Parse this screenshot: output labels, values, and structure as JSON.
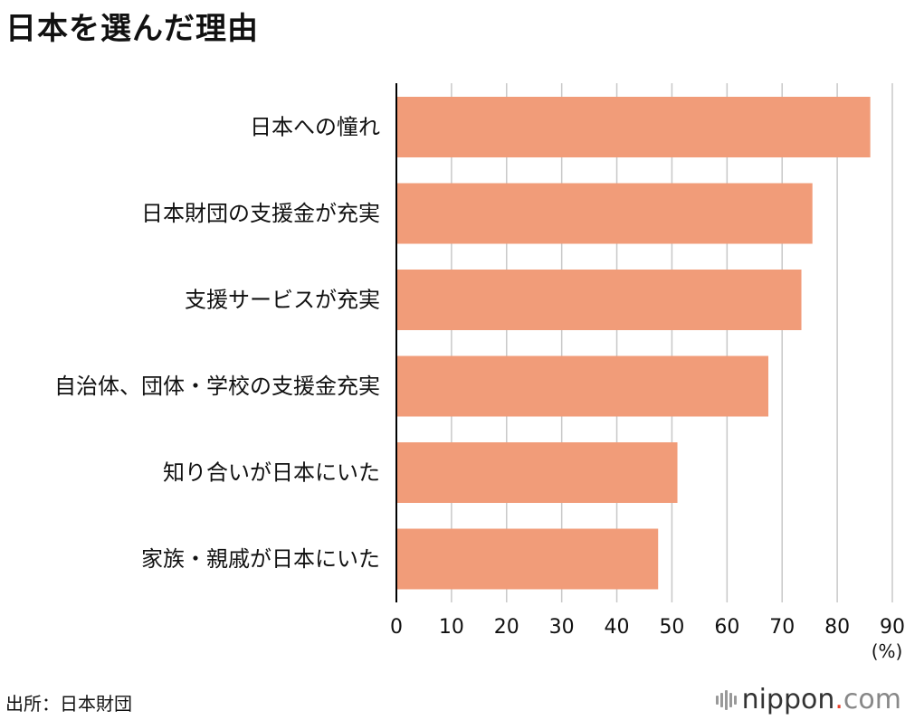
{
  "title": "日本を選んだ理由",
  "source": "出所：日本財団",
  "logo": {
    "name": "nippon",
    "dot": ".",
    "tld": "com"
  },
  "colors": {
    "bar": "#f19c79",
    "grid": "#c8c8c8",
    "axis": "#000000"
  },
  "chart_data": {
    "type": "bar",
    "orientation": "horizontal",
    "categories": [
      "日本への憧れ",
      "日本財団の支援金が充実",
      "支援サービスが充実",
      "自治体、団体・学校の支援金充実",
      "知り合いが日本にいた",
      "家族・親戚が日本にいた"
    ],
    "values": [
      86,
      75.5,
      73.5,
      67.5,
      51,
      47.5
    ],
    "xlim": [
      0,
      90
    ],
    "xticks": [
      0,
      10,
      20,
      30,
      40,
      50,
      60,
      70,
      80,
      90
    ],
    "xunit": "(%)",
    "grid": true
  }
}
